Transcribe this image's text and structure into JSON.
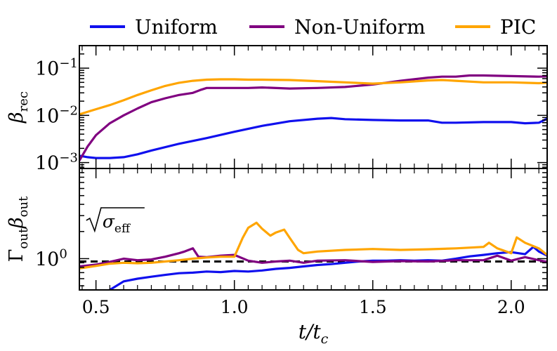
{
  "chart_data": {
    "type": "line",
    "legend": {
      "placement": "top",
      "entries": [
        {
          "name": "Uniform",
          "color": "#1010ee"
        },
        {
          "name": "Non-Uniform",
          "color": "#800080"
        },
        {
          "name": "PIC",
          "color": "#ffa500"
        }
      ]
    },
    "xlabel": {
      "main": "t/t",
      "sub": "c"
    },
    "xlim": [
      0.44,
      2.13
    ],
    "xticks": [
      0.5,
      1.0,
      1.5,
      2.0
    ],
    "xtick_labels": [
      "0.5",
      "1.0",
      "1.5",
      "2.0"
    ],
    "panels": [
      {
        "id": "top",
        "ylabel": {
          "main": "β",
          "sub": "rec"
        },
        "yscale": "log",
        "ylim": [
          0.00075,
          0.3
        ],
        "yticks": [
          {
            "value": 0.001,
            "mantissa": "10",
            "exp": "−3"
          },
          {
            "value": 0.01,
            "mantissa": "10",
            "exp": "−2"
          },
          {
            "value": 0.1,
            "mantissa": "10",
            "exp": "−1"
          }
        ],
        "series": [
          {
            "name": "Uniform",
            "color": "#1010ee",
            "x": [
              0.44,
              0.47,
              0.5,
              0.55,
              0.6,
              0.65,
              0.7,
              0.8,
              0.9,
              1.0,
              1.1,
              1.2,
              1.3,
              1.35,
              1.4,
              1.5,
              1.6,
              1.7,
              1.75,
              1.8,
              1.9,
              2.0,
              2.05,
              2.1,
              2.13
            ],
            "y": [
              0.0014,
              0.0013,
              0.00125,
              0.00125,
              0.0013,
              0.0015,
              0.0018,
              0.0025,
              0.0033,
              0.0045,
              0.006,
              0.0075,
              0.0085,
              0.0088,
              0.0083,
              0.008,
              0.0078,
              0.0078,
              0.007,
              0.007,
              0.0072,
              0.0072,
              0.0068,
              0.007,
              0.0085
            ]
          },
          {
            "name": "Non-Uniform",
            "color": "#800080",
            "x": [
              0.44,
              0.47,
              0.5,
              0.55,
              0.6,
              0.65,
              0.7,
              0.75,
              0.8,
              0.85,
              0.88,
              0.9,
              0.95,
              1.0,
              1.05,
              1.1,
              1.2,
              1.3,
              1.4,
              1.5,
              1.6,
              1.7,
              1.75,
              1.8,
              1.85,
              1.9,
              2.0,
              2.1,
              2.13
            ],
            "y": [
              0.0011,
              0.0022,
              0.0038,
              0.0068,
              0.01,
              0.014,
              0.019,
              0.023,
              0.027,
              0.03,
              0.035,
              0.038,
              0.038,
              0.038,
              0.038,
              0.039,
              0.037,
              0.038,
              0.04,
              0.045,
              0.054,
              0.063,
              0.066,
              0.066,
              0.07,
              0.07,
              0.068,
              0.066,
              0.067
            ]
          },
          {
            "name": "PIC",
            "color": "#ffa500",
            "x": [
              0.44,
              0.5,
              0.55,
              0.6,
              0.65,
              0.7,
              0.75,
              0.8,
              0.85,
              0.9,
              0.95,
              1.0,
              1.05,
              1.1,
              1.2,
              1.3,
              1.4,
              1.5,
              1.6,
              1.7,
              1.75,
              1.8,
              1.9,
              2.0,
              2.1,
              2.13
            ],
            "y": [
              0.0105,
              0.0135,
              0.0165,
              0.021,
              0.027,
              0.034,
              0.042,
              0.049,
              0.054,
              0.057,
              0.058,
              0.058,
              0.057,
              0.057,
              0.056,
              0.053,
              0.05,
              0.047,
              0.05,
              0.055,
              0.056,
              0.054,
              0.05,
              0.05,
              0.048,
              0.049
            ]
          }
        ]
      },
      {
        "id": "bottom",
        "ylabel": {
          "main": "Γ",
          "sub1": "out",
          "main2": "β",
          "sub2": "out"
        },
        "yscale": "log",
        "ylim": [
          0.45,
          10
        ],
        "yticks": [
          {
            "value": 1,
            "mantissa": "10",
            "exp": "0"
          }
        ],
        "reference_line": {
          "value": 0.93,
          "style": "dashed",
          "color": "#000000"
        },
        "annotation": {
          "text": "σ",
          "sub": "eff",
          "x": 0.47,
          "y": 2.3
        },
        "series": [
          {
            "name": "Uniform",
            "color": "#1010ee",
            "x": [
              0.5,
              0.55,
              0.6,
              0.65,
              0.7,
              0.75,
              0.8,
              0.85,
              0.9,
              0.95,
              1.0,
              1.05,
              1.1,
              1.15,
              1.2,
              1.25,
              1.3,
              1.35,
              1.4,
              1.45,
              1.5,
              1.55,
              1.6,
              1.65,
              1.7,
              1.75,
              1.8,
              1.85,
              1.9,
              1.95,
              2.0,
              2.05,
              2.08,
              2.1,
              2.13
            ],
            "y": [
              0.35,
              0.45,
              0.56,
              0.6,
              0.63,
              0.66,
              0.69,
              0.7,
              0.72,
              0.71,
              0.73,
              0.72,
              0.74,
              0.77,
              0.79,
              0.82,
              0.85,
              0.87,
              0.9,
              0.93,
              0.95,
              0.95,
              0.96,
              0.95,
              0.96,
              0.95,
              1.0,
              1.06,
              1.1,
              1.15,
              1.18,
              1.12,
              1.35,
              1.2,
              1.08
            ]
          },
          {
            "name": "Non-Uniform",
            "color": "#800080",
            "x": [
              0.44,
              0.5,
              0.55,
              0.6,
              0.65,
              0.7,
              0.75,
              0.8,
              0.82,
              0.85,
              0.87,
              0.9,
              0.95,
              1.0,
              1.05,
              1.1,
              1.15,
              1.2,
              1.25,
              1.3,
              1.4,
              1.5,
              1.6,
              1.7,
              1.8,
              1.9,
              1.95,
              2.0,
              2.05,
              2.1,
              2.13
            ],
            "y": [
              0.82,
              0.86,
              0.92,
              1.0,
              0.96,
              0.98,
              1.05,
              1.15,
              1.2,
              1.3,
              1.05,
              1.04,
              1.08,
              1.1,
              0.95,
              0.9,
              0.93,
              0.95,
              0.9,
              0.95,
              0.96,
              0.92,
              0.94,
              0.93,
              0.96,
              0.96,
              1.08,
              0.95,
              1.04,
              0.96,
              0.92
            ]
          },
          {
            "name": "PIC",
            "color": "#ffa500",
            "x": [
              0.44,
              0.5,
              0.55,
              0.6,
              0.65,
              0.7,
              0.75,
              0.8,
              0.85,
              0.9,
              0.95,
              1.0,
              1.03,
              1.05,
              1.08,
              1.1,
              1.13,
              1.15,
              1.18,
              1.2,
              1.23,
              1.25,
              1.3,
              1.4,
              1.5,
              1.6,
              1.7,
              1.8,
              1.9,
              1.92,
              1.95,
              2.0,
              2.02,
              2.05,
              2.1,
              2.13
            ],
            "y": [
              0.78,
              0.83,
              0.88,
              0.9,
              0.89,
              0.9,
              0.93,
              0.96,
              1.0,
              1.03,
              1.05,
              1.05,
              1.7,
              2.2,
              2.5,
              2.15,
              1.8,
              1.95,
              2.1,
              1.7,
              1.25,
              1.15,
              1.2,
              1.25,
              1.28,
              1.25,
              1.27,
              1.3,
              1.35,
              1.5,
              1.3,
              1.15,
              1.72,
              1.5,
              1.3,
              1.1
            ]
          }
        ]
      }
    ]
  }
}
